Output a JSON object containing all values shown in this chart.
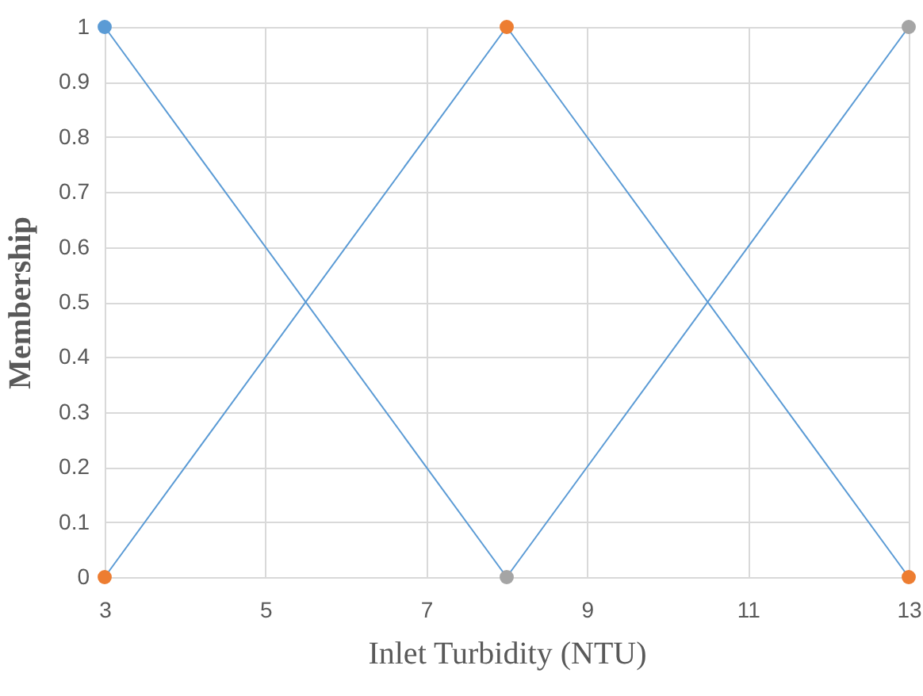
{
  "chart_data": {
    "type": "line",
    "xlabel": "Inlet Turbidity (NTU)",
    "ylabel": "Membership",
    "xlim": [
      3,
      13
    ],
    "xticks": [
      3,
      5,
      7,
      9,
      11,
      13
    ],
    "ylim": [
      0,
      1
    ],
    "yticks": [
      0,
      0.1,
      0.2,
      0.3,
      0.4,
      0.5,
      0.6,
      0.7,
      0.8,
      0.9,
      1
    ],
    "grid": true,
    "line_style": "solid",
    "series": [
      {
        "type": "line",
        "color": "#5b9bd5",
        "marker": "none",
        "x": [
          3,
          8
        ],
        "values": [
          1,
          0
        ]
      },
      {
        "type": "line",
        "color": "#5b9bd5",
        "marker": "none",
        "x": [
          3,
          8,
          13
        ],
        "values": [
          0,
          1,
          0
        ]
      },
      {
        "type": "line",
        "color": "#5b9bd5",
        "marker": "none",
        "x": [
          8,
          13
        ],
        "values": [
          0,
          1
        ]
      },
      {
        "type": "scatter",
        "marker": "circle",
        "color": "#5b9bd5",
        "x": [
          3
        ],
        "values": [
          1
        ]
      },
      {
        "type": "scatter",
        "marker": "circle",
        "color": "#ed7d31",
        "x": [
          3,
          8,
          13
        ],
        "values": [
          0,
          1,
          0
        ]
      },
      {
        "type": "scatter",
        "marker": "circle",
        "color": "#a5a5a5",
        "x": [
          8,
          13
        ],
        "values": [
          0,
          1
        ]
      }
    ]
  }
}
